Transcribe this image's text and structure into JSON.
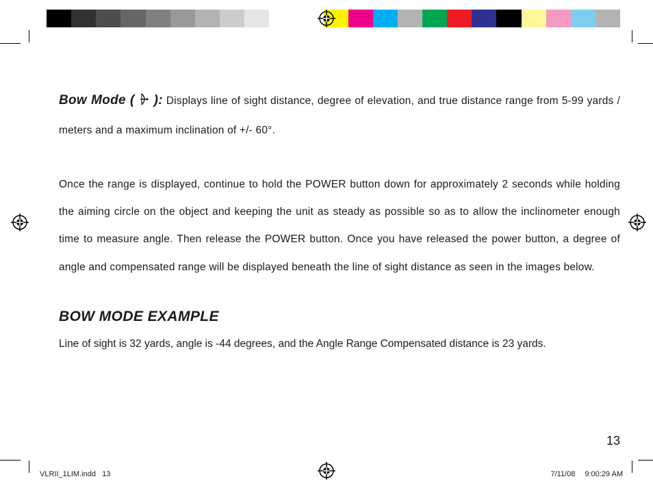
{
  "colorbar": {
    "swatches": [
      "#000000",
      "#323232",
      "#4d4d4d",
      "#666666",
      "#808080",
      "#999999",
      "#b3b3b3",
      "#cccccc",
      "#e5e5e5",
      "#ffffff",
      "GAP",
      "#fff200",
      "#ec008c",
      "#00aeef",
      "#b3b3b3",
      "#00a651",
      "#ed1c24",
      "#2e3192",
      "#000000",
      "#fff799",
      "#f49ac1",
      "#7fcdee",
      "#b3b3b3"
    ]
  },
  "body": {
    "lead_label_open": "Bow Mode (",
    "lead_label_close": "):",
    "para1_rest": " Displays line of sight distance, degree of elevation, and true distance range from 5-99 yards / meters and a maximum inclination of +/- 60°.",
    "para2": "Once the range is displayed, continue to hold the POWER button down for approximately 2 seconds while holding the aiming circle on the object and keeping the unit as steady as possible so as to allow the inclinometer enough time to measure angle. Then release the POWER button. Once you have released the power button, a degree of angle and compensated range will be displayed beneath the line of sight distance as seen in the images below.",
    "h2": "BOW MODE EXAMPLE",
    "para3": "Line of sight is 32 yards, angle is -44 degrees, and the Angle Range Compensated distance is 23 yards."
  },
  "page_number": "13",
  "slug": {
    "file": "VLRII_1LIM.indd",
    "page": "13",
    "date": "7/11/08",
    "time": "9:00:29 AM"
  }
}
